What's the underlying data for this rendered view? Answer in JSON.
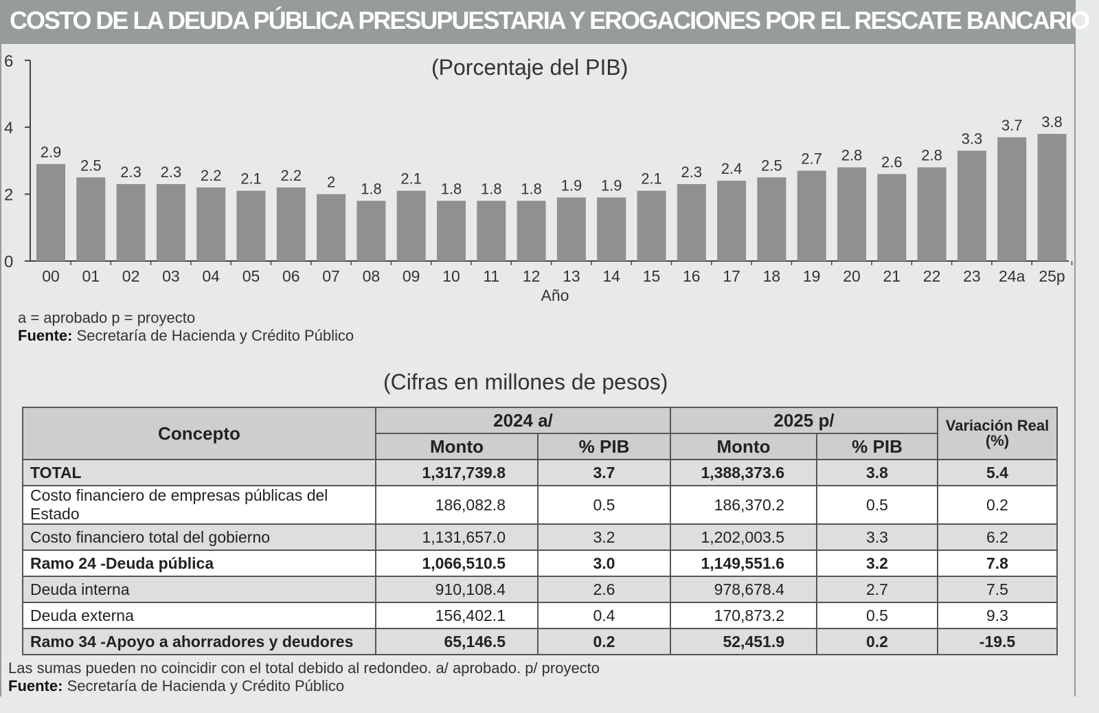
{
  "title": "COSTO DE LA DEUDA PÚBLICA PRESUPUESTARIA Y EROGACIONES POR EL RESCATE BANCARIO",
  "chart_data": {
    "type": "bar",
    "subtitle": "(Porcentaje del PIB)",
    "xlabel": "Año",
    "ylabel": "",
    "ylim": [
      0,
      6
    ],
    "yticks": [
      0,
      2,
      4,
      6
    ],
    "categories": [
      "00",
      "01",
      "02",
      "03",
      "04",
      "05",
      "06",
      "07",
      "08",
      "09",
      "10",
      "11",
      "12",
      "13",
      "14",
      "15",
      "16",
      "17",
      "18",
      "19",
      "20",
      "21",
      "22",
      "23",
      "24a",
      "25p"
    ],
    "values": [
      2.9,
      2.5,
      2.3,
      2.3,
      2.2,
      2.1,
      2.2,
      2.0,
      1.8,
      2.1,
      1.8,
      1.8,
      1.8,
      1.9,
      1.9,
      2.1,
      2.3,
      2.4,
      2.5,
      2.7,
      2.8,
      2.6,
      2.8,
      3.3,
      3.7,
      3.8
    ],
    "bar_color": "#8e9091",
    "grid": false
  },
  "chart_notes": {
    "legend": "a = aprobado  p = proyecto",
    "source_label": "Fuente:",
    "source": "Secretaría de Hacienda y Crédito Público"
  },
  "table": {
    "subtitle": "(Cifras en millones de pesos)",
    "headers": {
      "concepto": "Concepto",
      "y2024": "2024 a/",
      "y2025": "2025 p/",
      "monto": "Monto",
      "pib": "% PIB",
      "variacion": "Variación Real (%)"
    },
    "rows": [
      {
        "concepto": "TOTAL",
        "m24": "1,317,739.8",
        "p24": "3.7",
        "m25": "1,388,373.6",
        "p25": "3.8",
        "var": "5.4",
        "bold": true
      },
      {
        "concepto": "Costo financiero de empresas públicas del Estado",
        "m24": "186,082.8",
        "p24": "0.5",
        "m25": "186,370.2",
        "p25": "0.5",
        "var": "0.2"
      },
      {
        "concepto": "Costo financiero total del gobierno",
        "m24": "1,131,657.0",
        "p24": "3.2",
        "m25": "1,202,003.5",
        "p25": "3.3",
        "var": "6.2"
      },
      {
        "concepto": "Ramo 24 -Deuda pública",
        "m24": "1,066,510.5",
        "p24": "3.0",
        "m25": "1,149,551.6",
        "p25": "3.2",
        "var": "7.8",
        "bold": true
      },
      {
        "concepto": "Deuda interna",
        "m24": "910,108.4",
        "p24": "2.6",
        "m25": "978,678.4",
        "p25": "2.7",
        "var": "7.5"
      },
      {
        "concepto": "Deuda externa",
        "m24": "156,402.1",
        "p24": "0.4",
        "m25": "170,873.2",
        "p25": "0.5",
        "var": "9.3"
      },
      {
        "concepto": "Ramo 34 -Apoyo a ahorradores y deudores",
        "m24": "65,146.5",
        "p24": "0.2",
        "m25": "52,451.9",
        "p25": "0.2",
        "var": "-19.5",
        "bold": true
      }
    ],
    "footnote": "Las sumas pueden no coincidir con el total debido al redondeo. a/ aprobado. p/ proyecto",
    "source_label": "Fuente:",
    "source": "Secretaría de Hacienda y Crédito Público"
  }
}
